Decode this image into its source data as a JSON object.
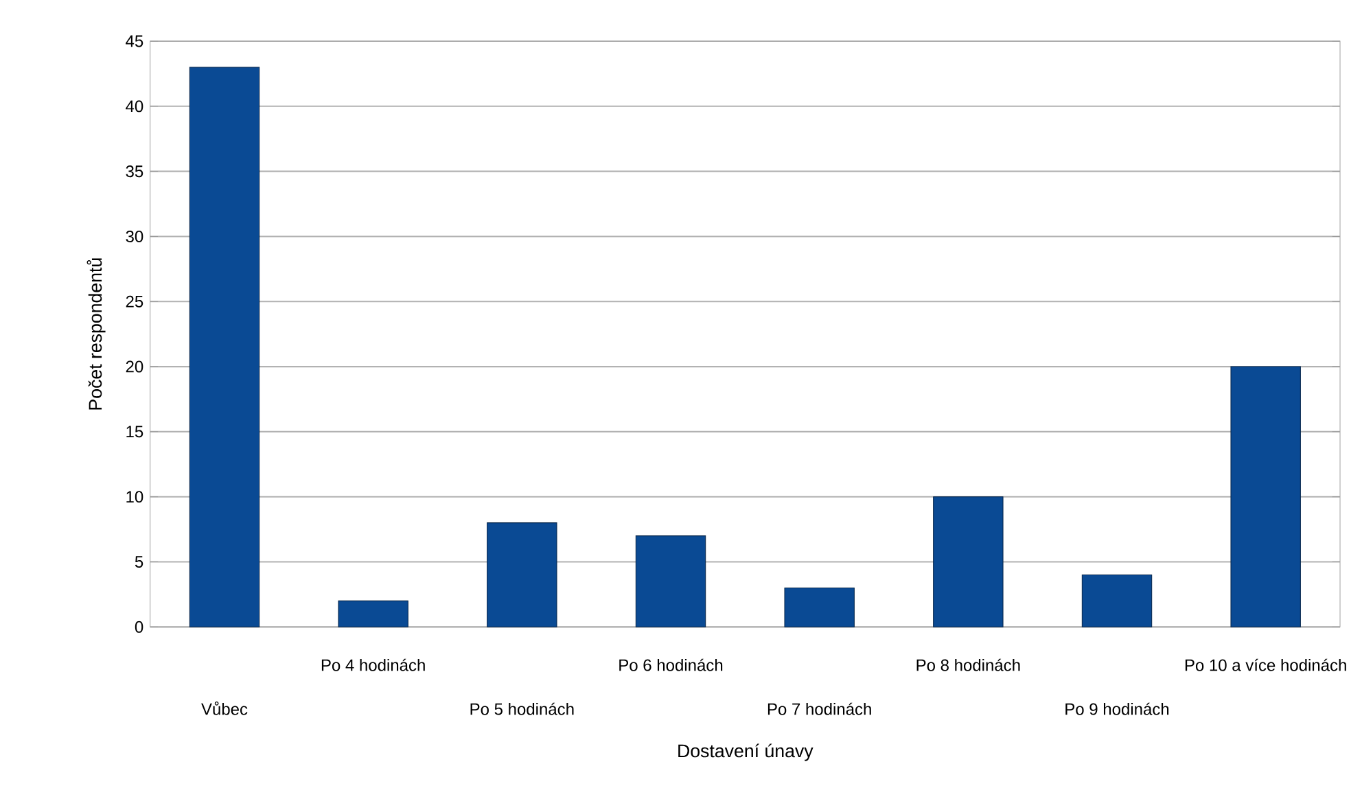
{
  "chart_data": {
    "type": "bar",
    "xlabel": "Dostavení únavy",
    "ylabel": "Počet respondentů",
    "categories": [
      "Vůbec",
      "Po 4 hodinách",
      "Po 5 hodinách",
      "Po 6 hodinách",
      "Po 7 hodinách",
      "Po 8 hodinách",
      "Po 9 hodinách",
      "Po 10 a více hodinách"
    ],
    "values": [
      43,
      2,
      8,
      7,
      3,
      10,
      4,
      20
    ],
    "color": "#0a4a94",
    "ylim": [
      0,
      45
    ],
    "yticks": [
      0,
      5,
      10,
      15,
      20,
      25,
      30,
      35,
      40,
      45
    ],
    "grid": "y"
  }
}
